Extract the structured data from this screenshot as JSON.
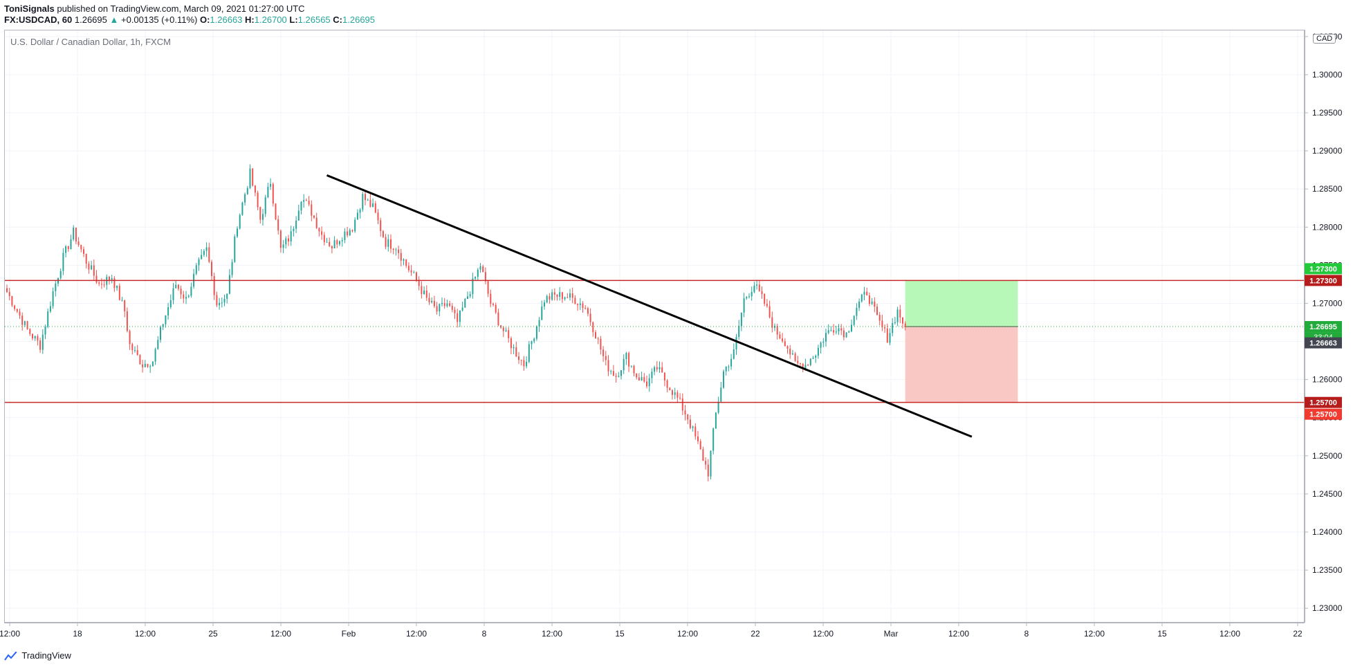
{
  "header": {
    "author": "ToniSignals",
    "published_text": "published on TradingView.com, March 09, 2021 01:27:00 UTC",
    "symbol": "FX:USDCAD, 60",
    "last_price": "1.26695",
    "change": "+0.00135 (+0.11%)",
    "ohlc": [
      {
        "label": "O:",
        "value": "1.26663"
      },
      {
        "label": "H:",
        "value": "1.26700"
      },
      {
        "label": "L:",
        "value": "1.26565"
      },
      {
        "label": "C:",
        "value": "1.26695"
      }
    ]
  },
  "chart_title": "U.S. Dollar / Canadian Dollar, 1h, FXCM",
  "currency_badge": "CAD",
  "footer": {
    "brand": "TradingView"
  },
  "colors": {
    "up_candle": "#26a69a",
    "down_candle": "#ef5350",
    "resistance_line": "#c62828",
    "support_line": "#c62828",
    "trendline": "#000000",
    "tp_zone": "#b7f7b7",
    "sl_zone": "#f9c8c4",
    "current_price_label": "#22ab3a",
    "axis_text": "#131722",
    "grid": "#f0f3fa"
  },
  "price_labels": {
    "take_profit_green": "1.27300",
    "resistance": "1.27300",
    "current": "1.26695",
    "countdown": "33:04",
    "open_marker": "1.26663",
    "support": "1.25700",
    "stop_red": "1.25700"
  },
  "chart_data": {
    "type": "candlestick",
    "title": "U.S. Dollar / Canadian Dollar, 1h, FXCM",
    "ylim": [
      1.2282,
      1.3058
    ],
    "y_ticks": [
      "1.30500",
      "1.30000",
      "1.29500",
      "1.29000",
      "1.28500",
      "1.28000",
      "1.27500",
      "1.27000",
      "1.26500",
      "1.26000",
      "1.25500",
      "1.25000",
      "1.24500",
      "1.24000",
      "1.23500",
      "1.23000"
    ],
    "x_ticks": [
      "12:00",
      "18",
      "12:00",
      "25",
      "12:00",
      "Feb",
      "12:00",
      "8",
      "12:00",
      "15",
      "12:00",
      "22",
      "12:00",
      "Mar",
      "12:00",
      "8",
      "12:00",
      "15",
      "12:00",
      "22"
    ],
    "price_path": [
      {
        "x": 0,
        "y": 1.2715
      },
      {
        "x": 4,
        "y": 1.269
      },
      {
        "x": 8,
        "y": 1.2665
      },
      {
        "x": 13,
        "y": 1.2645
      },
      {
        "x": 18,
        "y": 1.2715
      },
      {
        "x": 22,
        "y": 1.276
      },
      {
        "x": 26,
        "y": 1.2793
      },
      {
        "x": 31,
        "y": 1.2755
      },
      {
        "x": 36,
        "y": 1.2725
      },
      {
        "x": 41,
        "y": 1.2735
      },
      {
        "x": 46,
        "y": 1.269
      },
      {
        "x": 48,
        "y": 1.2645
      },
      {
        "x": 53,
        "y": 1.262
      },
      {
        "x": 57,
        "y": 1.2625
      },
      {
        "x": 61,
        "y": 1.2675
      },
      {
        "x": 66,
        "y": 1.2725
      },
      {
        "x": 70,
        "y": 1.2705
      },
      {
        "x": 74,
        "y": 1.2745
      },
      {
        "x": 78,
        "y": 1.277
      },
      {
        "x": 82,
        "y": 1.27
      },
      {
        "x": 86,
        "y": 1.271
      },
      {
        "x": 90,
        "y": 1.2805
      },
      {
        "x": 95,
        "y": 1.287
      },
      {
        "x": 99,
        "y": 1.281
      },
      {
        "x": 103,
        "y": 1.286
      },
      {
        "x": 107,
        "y": 1.277
      },
      {
        "x": 111,
        "y": 1.279
      },
      {
        "x": 115,
        "y": 1.284
      },
      {
        "x": 119,
        "y": 1.282
      },
      {
        "x": 123,
        "y": 1.279
      },
      {
        "x": 127,
        "y": 1.2775
      },
      {
        "x": 131,
        "y": 1.279
      },
      {
        "x": 135,
        "y": 1.28
      },
      {
        "x": 139,
        "y": 1.284
      },
      {
        "x": 143,
        "y": 1.2825
      },
      {
        "x": 148,
        "y": 1.278
      },
      {
        "x": 152,
        "y": 1.2775
      },
      {
        "x": 156,
        "y": 1.275
      },
      {
        "x": 160,
        "y": 1.273
      },
      {
        "x": 164,
        "y": 1.2705
      },
      {
        "x": 168,
        "y": 1.269
      },
      {
        "x": 172,
        "y": 1.27
      },
      {
        "x": 176,
        "y": 1.2675
      },
      {
        "x": 180,
        "y": 1.271
      },
      {
        "x": 185,
        "y": 1.275
      },
      {
        "x": 189,
        "y": 1.27
      },
      {
        "x": 193,
        "y": 1.267
      },
      {
        "x": 198,
        "y": 1.264
      },
      {
        "x": 202,
        "y": 1.262
      },
      {
        "x": 206,
        "y": 1.266
      },
      {
        "x": 210,
        "y": 1.2705
      },
      {
        "x": 214,
        "y": 1.271
      },
      {
        "x": 218,
        "y": 1.271
      },
      {
        "x": 222,
        "y": 1.2705
      },
      {
        "x": 226,
        "y": 1.2695
      },
      {
        "x": 230,
        "y": 1.266
      },
      {
        "x": 234,
        "y": 1.262
      },
      {
        "x": 238,
        "y": 1.2605
      },
      {
        "x": 242,
        "y": 1.263
      },
      {
        "x": 246,
        "y": 1.2605
      },
      {
        "x": 250,
        "y": 1.2595
      },
      {
        "x": 254,
        "y": 1.2615
      },
      {
        "x": 258,
        "y": 1.2595
      },
      {
        "x": 262,
        "y": 1.2575
      },
      {
        "x": 266,
        "y": 1.255
      },
      {
        "x": 270,
        "y": 1.2515
      },
      {
        "x": 274,
        "y": 1.2478
      },
      {
        "x": 277,
        "y": 1.2555
      },
      {
        "x": 280,
        "y": 1.261
      },
      {
        "x": 284,
        "y": 1.2635
      },
      {
        "x": 288,
        "y": 1.2705
      },
      {
        "x": 292,
        "y": 1.2725
      },
      {
        "x": 296,
        "y": 1.27
      },
      {
        "x": 300,
        "y": 1.2665
      },
      {
        "x": 304,
        "y": 1.265
      },
      {
        "x": 308,
        "y": 1.262
      },
      {
        "x": 312,
        "y": 1.262
      },
      {
        "x": 316,
        "y": 1.2635
      },
      {
        "x": 320,
        "y": 1.266
      },
      {
        "x": 324,
        "y": 1.267
      },
      {
        "x": 328,
        "y": 1.266
      },
      {
        "x": 332,
        "y": 1.2695
      },
      {
        "x": 336,
        "y": 1.2715
      },
      {
        "x": 340,
        "y": 1.268
      },
      {
        "x": 344,
        "y": 1.2655
      },
      {
        "x": 348,
        "y": 1.269
      },
      {
        "x": 351,
        "y": 1.26695
      }
    ],
    "annotations": {
      "resistance_level": 1.273,
      "support_level": 1.257,
      "entry_level": 1.26695,
      "trendline": [
        {
          "x": 125,
          "y": 1.2868
        },
        {
          "x": 377,
          "y": 1.2525
        }
      ],
      "long_position_tool": {
        "x_start": 351,
        "x_end": 395,
        "entry": 1.26695,
        "target": 1.273,
        "stop": 1.257
      }
    }
  }
}
